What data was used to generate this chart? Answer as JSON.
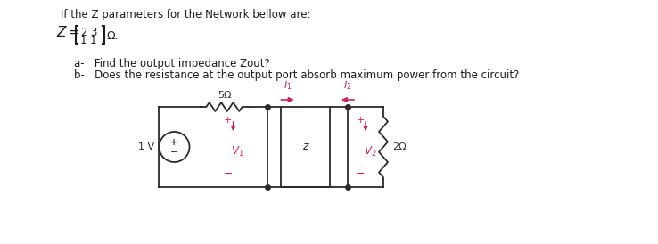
{
  "title_text": "If the Z parameters for the Network bellow are:",
  "question_a": "a-   Find the output impedance Zout?",
  "question_b": "b-   Does the resistance at the output port absorb maximum power from the circuit?",
  "bg_color": "#ffffff",
  "text_color": "#1a1a1a",
  "circuit_color": "#2a2a2a",
  "pink_color": "#cc2255",
  "source_label": "1 V",
  "resistor1_label": "5Ω",
  "resistor2_label": "2Ω",
  "box_label": "z",
  "V1_label": "V",
  "V1_sub": "1",
  "V2_label": "V",
  "V2_sub": "2",
  "I1_label": "I",
  "I1_sub": "1",
  "I2_label": "I",
  "I2_sub": "2",
  "title_fontsize": 8.5,
  "question_fontsize": 8.5,
  "circuit_fontsize": 8
}
